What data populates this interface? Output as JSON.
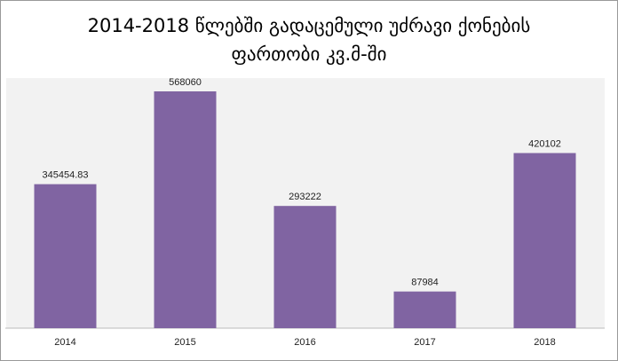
{
  "chart_data": {
    "type": "bar",
    "title": [
      "2014-2018 წლებში გადაცემული უძრავი ქონების",
      "ფართობი კვ.მ-ში"
    ],
    "categories": [
      "2014",
      "2015",
      "2016",
      "2017",
      "2018"
    ],
    "values": [
      345454.83,
      568060,
      293222,
      87984,
      420102
    ],
    "color": "#8064a2",
    "ylim": [
      0,
      600000
    ]
  }
}
